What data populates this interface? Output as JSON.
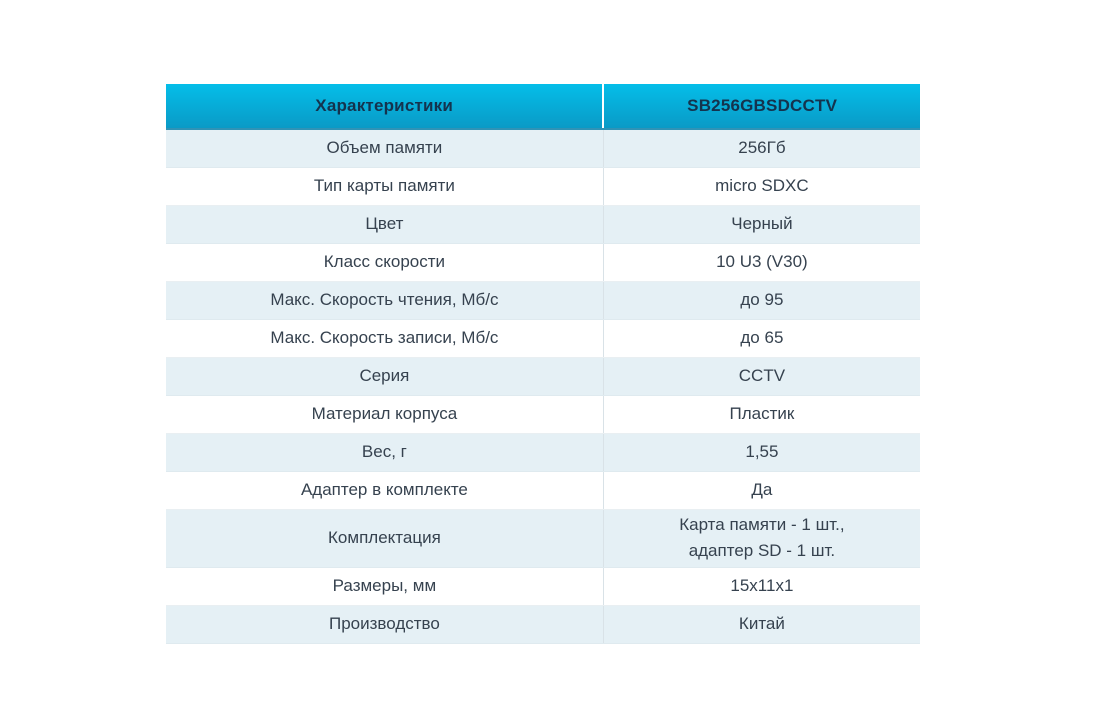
{
  "table": {
    "header": {
      "characteristics": "Характеристики",
      "model": "SB256GBSDCCTV"
    },
    "rows": [
      {
        "label": "Объем памяти",
        "value": "256Гб"
      },
      {
        "label": "Тип карты памяти",
        "value": "micro SDXC"
      },
      {
        "label": "Цвет",
        "value": "Черный"
      },
      {
        "label": "Класс скорости",
        "value": "10 U3 (V30)"
      },
      {
        "label": "Макс. Скорость чтения, Мб/с",
        "value": "до 95"
      },
      {
        "label": "Макс. Скорость записи, Мб/с",
        "value": "до 65"
      },
      {
        "label": "Серия",
        "value": "CCTV"
      },
      {
        "label": "Материал корпуса",
        "value": "Пластик"
      },
      {
        "label": "Вес, г",
        "value": "1,55"
      },
      {
        "label": "Адаптер в комплекте",
        "value": "Да"
      },
      {
        "label": "Комплектация",
        "value": "Карта памяти - 1 шт.,\nадаптер SD - 1 шт."
      },
      {
        "label": "Размеры, мм",
        "value": "15x11x1"
      },
      {
        "label": "Производство",
        "value": "Китай"
      }
    ],
    "colors": {
      "header_gradient_top": "#04bee9",
      "header_gradient_bottom": "#0a9ac6",
      "header_text": "#14334e",
      "row_alt_background": "#e5f0f5",
      "row_background": "#ffffff",
      "body_text": "#36424f"
    }
  }
}
